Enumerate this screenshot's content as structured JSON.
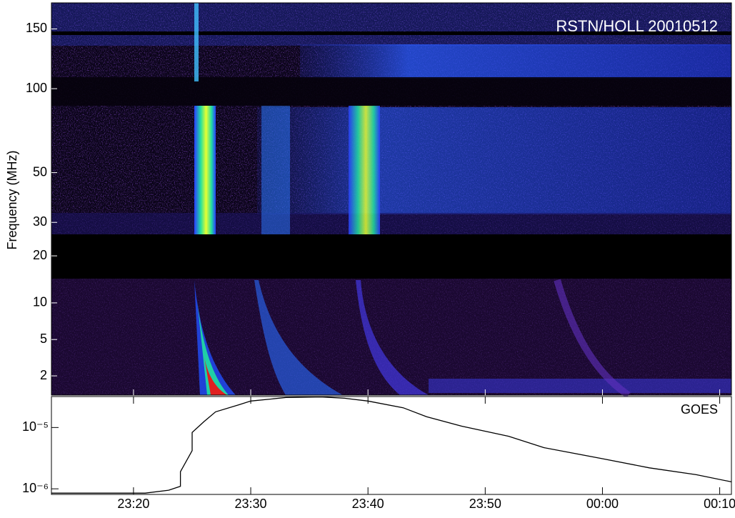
{
  "chart_data": [
    {
      "type": "spectrogram",
      "title": "RSTN/HOLL 20010512",
      "ylabel": "Frequency (MHz)",
      "ylim": [
        1.05,
        176
      ],
      "yticks": [
        2,
        5,
        10,
        20,
        30,
        50,
        100,
        150
      ],
      "xlim": [
        "23:13",
        "00:11"
      ]
    },
    {
      "type": "line",
      "annotation": "GOES",
      "color": "#000000",
      "log": true,
      "x": [
        "23:13",
        "23:21",
        "23:23",
        "23:24",
        "23:24",
        "23:25",
        "23:25",
        "23:26",
        "23:27",
        "23:29",
        "23:30",
        "23:33",
        "23:36",
        "23:38",
        "23:40",
        "23:43",
        "23:45",
        "23:48",
        "23:52",
        "23:55",
        "00:00",
        "00:04",
        "00:08",
        "00:11"
      ],
      "values": [
        8.5e-07,
        8.5e-07,
        9.5e-07,
        1.1e-06,
        1.9e-06,
        4.2e-06,
        8.3e-06,
        1.24e-05,
        1.8e-05,
        2.35e-05,
        2.7e-05,
        3.08e-05,
        3.15e-05,
        3e-05,
        2.7e-05,
        2.1e-05,
        1.5e-05,
        1.05e-05,
        7.2e-06,
        4.7e-06,
        3.1e-06,
        2.2e-06,
        1.7e-06,
        1.3e-06
      ],
      "ylim": [
        8.1e-07,
        3.2e-05
      ],
      "yticks": [
        {
          "value": 1e-06,
          "label": "10⁻⁶"
        },
        {
          "value": 1e-05,
          "label": "10⁻⁵"
        }
      ],
      "xlim": [
        "23:13",
        "00:11"
      ],
      "xticks": [
        "23:20",
        "23:30",
        "23:40",
        "23:50",
        "00:00",
        "00:10"
      ]
    }
  ]
}
